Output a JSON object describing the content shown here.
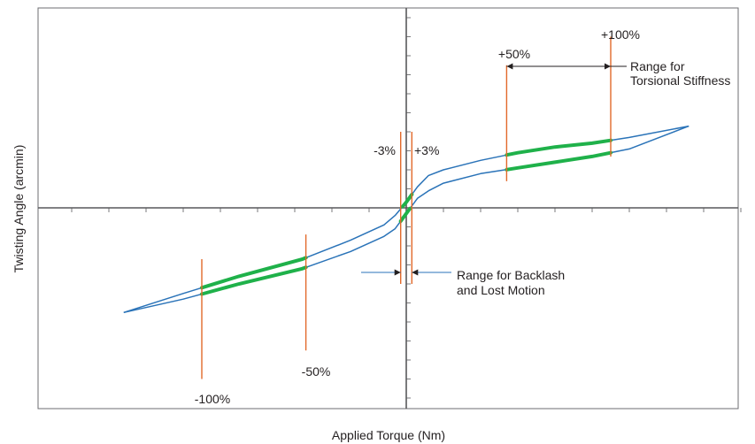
{
  "chart_data": {
    "type": "line",
    "title": "",
    "xlabel": "Applied Torque (Nm)",
    "ylabel": "Twisting Angle (arcmin)",
    "xlim": [
      -100,
      100
    ],
    "ylim": [
      -100,
      100
    ],
    "grid": false,
    "legend": "none",
    "series": [
      {
        "role": "upper-branch",
        "color": "#2a73b8",
        "points": [
          [
            -76,
            -55
          ],
          [
            -60,
            -45
          ],
          [
            -45,
            -36
          ],
          [
            -28,
            -27
          ],
          [
            -15,
            -17
          ],
          [
            -6,
            -9
          ],
          [
            -3,
            -4
          ],
          [
            0,
            3
          ],
          [
            3,
            11
          ],
          [
            6,
            17
          ],
          [
            10,
            20
          ],
          [
            20,
            25
          ],
          [
            30,
            29
          ],
          [
            40,
            32
          ],
          [
            50,
            34
          ],
          [
            60,
            37
          ],
          [
            76,
            43
          ]
        ]
      },
      {
        "role": "lower-branch",
        "color": "#2a73b8",
        "points": [
          [
            -76,
            -55
          ],
          [
            -60,
            -48
          ],
          [
            -45,
            -40
          ],
          [
            -28,
            -32
          ],
          [
            -15,
            -23
          ],
          [
            -6,
            -15
          ],
          [
            -3,
            -11
          ],
          [
            0,
            -3
          ],
          [
            3,
            5
          ],
          [
            6,
            9
          ],
          [
            10,
            13
          ],
          [
            20,
            18
          ],
          [
            30,
            21
          ],
          [
            40,
            24
          ],
          [
            50,
            27
          ],
          [
            60,
            31
          ],
          [
            76,
            43
          ]
        ]
      }
    ],
    "highlight_segments": {
      "color": "#1fb14a",
      "segments": [
        {
          "branch": "upper",
          "x": [
            -55,
            -27
          ]
        },
        {
          "branch": "lower",
          "x": [
            -55,
            -27
          ]
        },
        {
          "branch": "upper",
          "x": [
            27,
            55
          ]
        },
        {
          "branch": "lower",
          "x": [
            27,
            55
          ]
        },
        {
          "branch": "upper",
          "x": [
            -1,
            1.5
          ]
        },
        {
          "branch": "lower",
          "x": [
            -1.5,
            1
          ]
        }
      ]
    },
    "markers": {
      "color": "#e2692a",
      "lines": [
        {
          "x": -55,
          "y": [
            -90,
            -27
          ],
          "label": "-100%"
        },
        {
          "x": -27,
          "y": [
            -75,
            -14
          ],
          "label": "-50%"
        },
        {
          "x": -1.5,
          "y": [
            -40,
            40
          ],
          "label": "-3%"
        },
        {
          "x": 1.5,
          "y": [
            -40,
            40
          ],
          "label": "+3%"
        },
        {
          "x": 27,
          "y": [
            14,
            75
          ],
          "label": "+50%"
        },
        {
          "x": 55,
          "y": [
            27,
            90
          ],
          "label": "+100%"
        }
      ]
    },
    "annotations": [
      {
        "text": [
          "Range for",
          "Torsional Stiffness"
        ]
      },
      {
        "text": [
          "Range for Backlash",
          "and Lost Motion"
        ]
      }
    ]
  }
}
